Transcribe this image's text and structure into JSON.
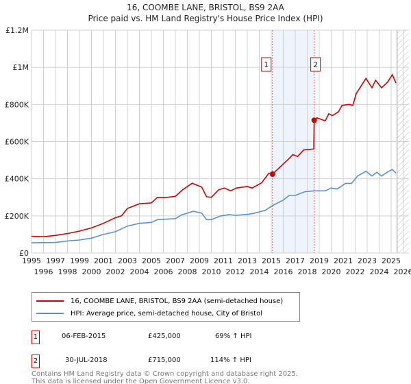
{
  "chart_data": {
    "type": "line",
    "title": "16, COOMBE LANE, BRISTOL, BS9 2AA",
    "subtitle": "Price paid vs. HM Land Registry's House Price Index (HPI)",
    "ylim": [
      0,
      1200000
    ],
    "xlim": [
      1995,
      2026
    ],
    "y_ticks": [
      {
        "v": 0,
        "label": "£0"
      },
      {
        "v": 200000,
        "label": "£200K"
      },
      {
        "v": 400000,
        "label": "£400K"
      },
      {
        "v": 600000,
        "label": "£600K"
      },
      {
        "v": 800000,
        "label": "£800K"
      },
      {
        "v": 1000000,
        "label": "£1M"
      },
      {
        "v": 1200000,
        "label": "£1.2M"
      }
    ],
    "x_ticks": [
      "1995",
      "1996",
      "1997",
      "1998",
      "1999",
      "2000",
      "2001",
      "2002",
      "2003",
      "2004",
      "2005",
      "2006",
      "2007",
      "2008",
      "2009",
      "2010",
      "2011",
      "2012",
      "2013",
      "2014",
      "2015",
      "2016",
      "2017",
      "2018",
      "2019",
      "2020",
      "2021",
      "2022",
      "2023",
      "2024",
      "2025",
      "2026"
    ],
    "grid": true,
    "series": [
      {
        "name": "16, COOMBE LANE, BRISTOL, BS9 2AA (semi-detached house)",
        "color": "#cc0000",
        "points": [
          [
            1995,
            90
          ],
          [
            1996,
            88
          ],
          [
            1997,
            95
          ],
          [
            1998,
            105
          ],
          [
            1999,
            118
          ],
          [
            2000,
            135
          ],
          [
            2001,
            160
          ],
          [
            2002,
            190
          ],
          [
            2002.5,
            200
          ],
          [
            2003,
            240
          ],
          [
            2004,
            265
          ],
          [
            2005,
            270
          ],
          [
            2005.5,
            300
          ],
          [
            2006,
            298
          ],
          [
            2007,
            305
          ],
          [
            2007.6,
            340
          ],
          [
            2008.4,
            376
          ],
          [
            2009.2,
            355
          ],
          [
            2009.6,
            303
          ],
          [
            2010,
            300
          ],
          [
            2010.6,
            340
          ],
          [
            2011.1,
            350
          ],
          [
            2011.6,
            335
          ],
          [
            2012.1,
            350
          ],
          [
            2013,
            358
          ],
          [
            2013.4,
            350
          ],
          [
            2014.2,
            378
          ],
          [
            2014.8,
            430
          ],
          [
            2015.1,
            425
          ],
          [
            2015.6,
            455
          ],
          [
            2016.5,
            510
          ],
          [
            2016.8,
            530
          ],
          [
            2017.2,
            520
          ],
          [
            2017.7,
            555
          ],
          [
            2018.55,
            560
          ],
          [
            2018.58,
            715
          ],
          [
            2018.8,
            728
          ],
          [
            2019.5,
            712
          ],
          [
            2019.8,
            750
          ],
          [
            2020.1,
            740
          ],
          [
            2020.6,
            760
          ],
          [
            2020.9,
            795
          ],
          [
            2021.5,
            800
          ],
          [
            2021.8,
            795
          ],
          [
            2022.1,
            860
          ],
          [
            2022.4,
            890
          ],
          [
            2022.9,
            940
          ],
          [
            2023.4,
            890
          ],
          [
            2023.7,
            930
          ],
          [
            2024.2,
            890
          ],
          [
            2024.7,
            920
          ],
          [
            2025.1,
            960
          ],
          [
            2025.4,
            915
          ]
        ]
      },
      {
        "name": "HPI: Average price, semi-detached house, City of Bristol",
        "color": "#5b8fd4",
        "points": [
          [
            1995,
            55
          ],
          [
            1997,
            57
          ],
          [
            1998,
            65
          ],
          [
            1999,
            70
          ],
          [
            2000,
            80
          ],
          [
            2001,
            100
          ],
          [
            2002,
            115
          ],
          [
            2003,
            145
          ],
          [
            2004,
            160
          ],
          [
            2005,
            165
          ],
          [
            2005.5,
            180
          ],
          [
            2007,
            185
          ],
          [
            2007.5,
            205
          ],
          [
            2008.5,
            225
          ],
          [
            2009.2,
            215
          ],
          [
            2009.6,
            180
          ],
          [
            2010,
            180
          ],
          [
            2010.8,
            200
          ],
          [
            2011.5,
            207
          ],
          [
            2012,
            203
          ],
          [
            2013,
            208
          ],
          [
            2013.5,
            213
          ],
          [
            2014.5,
            230
          ],
          [
            2015.1,
            255
          ],
          [
            2016,
            285
          ],
          [
            2016.5,
            310
          ],
          [
            2017,
            310
          ],
          [
            2017.8,
            330
          ],
          [
            2018.6,
            335
          ],
          [
            2019.5,
            335
          ],
          [
            2020,
            350
          ],
          [
            2020.5,
            345
          ],
          [
            2021.2,
            375
          ],
          [
            2021.7,
            375
          ],
          [
            2022.2,
            415
          ],
          [
            2022.9,
            440
          ],
          [
            2023.4,
            415
          ],
          [
            2023.8,
            435
          ],
          [
            2024.2,
            415
          ],
          [
            2024.8,
            440
          ],
          [
            2025.1,
            450
          ],
          [
            2025.4,
            430
          ]
        ]
      }
    ],
    "sales": [
      {
        "label": "1",
        "x": 2015.1,
        "value": 425000
      },
      {
        "label": "2",
        "x": 2018.58,
        "value": 715000
      }
    ],
    "highlight_range": [
      2015.1,
      2018.58
    ],
    "forecast_hatch_from": 2025.5
  },
  "legend": {
    "items": [
      "16, COOMBE LANE, BRISTOL, BS9 2AA (semi-detached house)",
      "HPI: Average price, semi-detached house, City of Bristol"
    ]
  },
  "transactions": [
    {
      "num": "1",
      "date": "06-FEB-2015",
      "price": "£425,000",
      "hpi": "69% ↑ HPI"
    },
    {
      "num": "2",
      "date": "30-JUL-2018",
      "price": "£715,000",
      "hpi": "114% ↑ HPI"
    }
  ],
  "footer": [
    "Contains HM Land Registry data © Crown copyright and database right 2025.",
    "This data is licensed under the Open Government Licence v3.0."
  ]
}
